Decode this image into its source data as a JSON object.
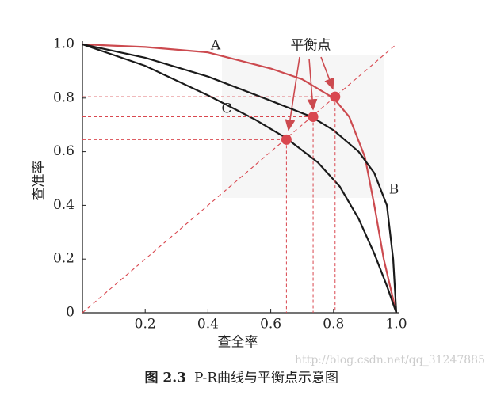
{
  "chart_data": {
    "type": "line",
    "xlabel": "查全率",
    "ylabel": "查准率",
    "xlim": [
      0,
      1
    ],
    "ylim": [
      0,
      1
    ],
    "xticks": [
      0.2,
      0.4,
      0.6,
      0.8,
      {
        "value": 1,
        "label": "1.0"
      }
    ],
    "yticks": [
      0,
      0.2,
      0.4,
      0.6,
      0.8,
      {
        "value": 1,
        "label": "1.0"
      }
    ],
    "series": [
      {
        "name": "A",
        "color": "#cc4a4f",
        "x": [
          0,
          0.2,
          0.4,
          0.6,
          0.7,
          0.8,
          0.85,
          0.9,
          0.93,
          0.96,
          1.0
        ],
        "y": [
          1.0,
          0.99,
          0.97,
          0.91,
          0.87,
          0.8,
          0.73,
          0.58,
          0.4,
          0.2,
          0
        ]
      },
      {
        "name": "B",
        "color": "#1a1a1a",
        "x": [
          0,
          0.2,
          0.4,
          0.6,
          0.73,
          0.8,
          0.88,
          0.93,
          0.97,
          0.99,
          1.0
        ],
        "y": [
          1.0,
          0.95,
          0.88,
          0.79,
          0.73,
          0.68,
          0.6,
          0.52,
          0.4,
          0.2,
          0
        ]
      },
      {
        "name": "C",
        "color": "#1a1a1a",
        "x": [
          0,
          0.2,
          0.4,
          0.55,
          0.65,
          0.75,
          0.82,
          0.88,
          0.93,
          0.97,
          1.0
        ],
        "y": [
          1.0,
          0.92,
          0.81,
          0.72,
          0.65,
          0.56,
          0.47,
          0.35,
          0.22,
          0.1,
          0
        ]
      }
    ],
    "break_even": {
      "label": "平衡点",
      "color": "#d9474f",
      "x": [
        0.65,
        0.735,
        0.805
      ],
      "y": [
        0.645,
        0.73,
        0.805
      ]
    },
    "caption": {
      "label": "图 2.3",
      "text": "P-R曲线与平衡点示意图"
    },
    "watermark": "http://blog.csdn.net/qq_31247885"
  }
}
